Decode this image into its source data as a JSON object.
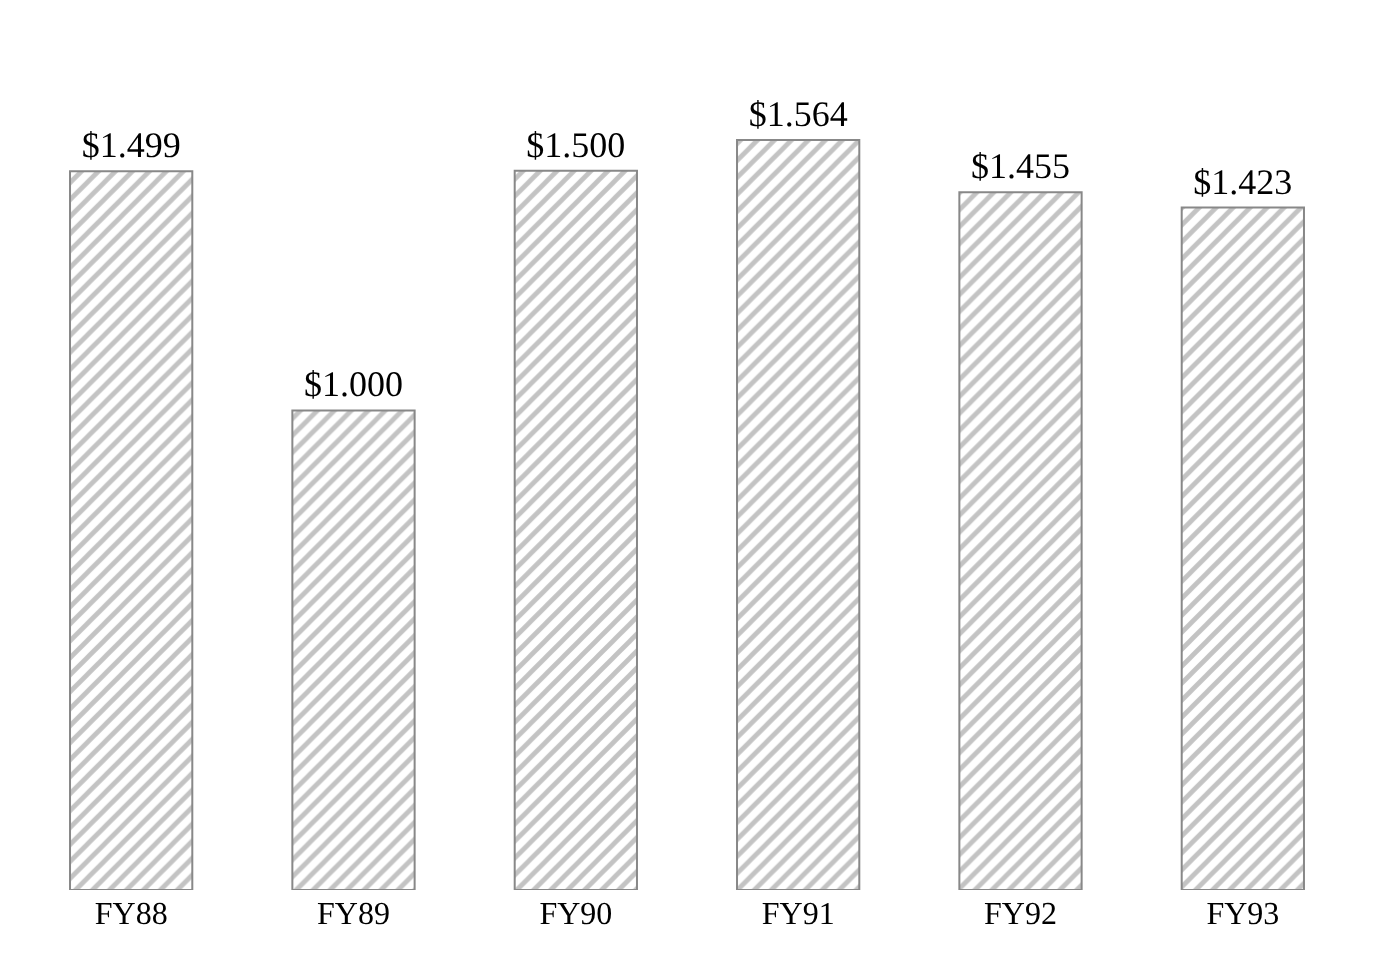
{
  "chart_data": {
    "type": "bar",
    "categories": [
      "FY88",
      "FY89",
      "FY90",
      "FY91",
      "FY92",
      "FY93"
    ],
    "values": [
      1.499,
      1.0,
      1.5,
      1.564,
      1.455,
      1.423
    ],
    "value_labels": [
      "$1.499",
      "$1.000",
      "$1.500",
      "$1.564",
      "$1.455",
      "$1.423"
    ],
    "color": "#888888"
  }
}
